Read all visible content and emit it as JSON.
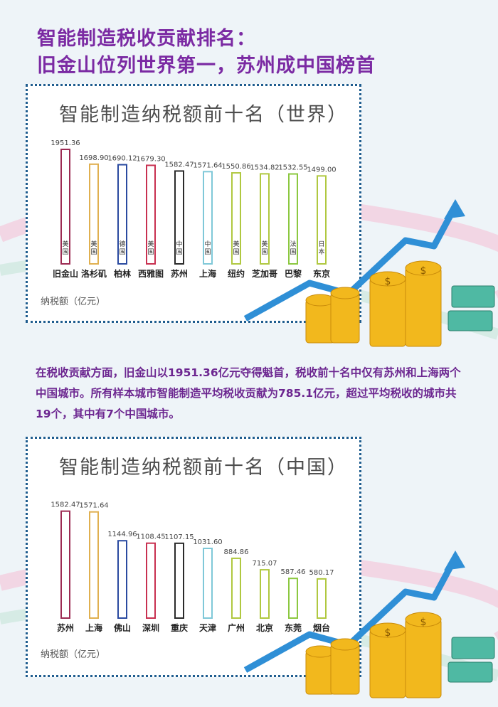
{
  "headline": {
    "line1": "智能制造税收贡献排名：",
    "line2": "旧金山位列世界第一，苏州成中国榜首"
  },
  "paragraph": "在税收贡献方面，旧金山以1951.36亿元夺得魁首，税收前十名中仅有苏州和上海两个中国城市。所有样本城市智能制造平均税收贡献为785.1亿元，超过平均税收的城市共19个，其中有7个中国城市。",
  "colors": {
    "headline": "#7b2aa3",
    "panel_border": "#1f5d8f",
    "arrow": "#2f8fd6",
    "coin": "#f2b81d"
  },
  "chart_data": [
    {
      "type": "bar",
      "title": "智能制造纳税额前十名（世界）",
      "ylabel": "纳税额（亿元）",
      "categories": [
        "旧金山",
        "洛杉矶",
        "柏林",
        "西雅图",
        "苏州",
        "上海",
        "纽约",
        "芝加哥",
        "巴黎",
        "东京"
      ],
      "countries": [
        "美国",
        "美国",
        "德国",
        "美国",
        "中国",
        "中国",
        "美国",
        "美国",
        "法国",
        "日本"
      ],
      "values": [
        1951.36,
        1698.9,
        1690.12,
        1679.3,
        1582.47,
        1571.64,
        1550.86,
        1534.82,
        1532.55,
        1499.0
      ],
      "value_labels": [
        "1951.36",
        "1698.90",
        "1690.12",
        "1679.30",
        "1582.47",
        "1571.64",
        "1550.86",
        "1534.82",
        "1532.55",
        "1499.00"
      ],
      "bar_colors": [
        "#9c2a52",
        "#e0b050",
        "#2a4aa0",
        "#c83050",
        "#2a2a2a",
        "#7fc8d8",
        "#b0c840",
        "#b0c840",
        "#8cc840",
        "#b0c840"
      ],
      "ylim": [
        0,
        2000
      ],
      "grid": false
    },
    {
      "type": "bar",
      "title": "智能制造纳税额前十名（中国）",
      "ylabel": "纳税额（亿元）",
      "categories": [
        "苏州",
        "上海",
        "佛山",
        "深圳",
        "重庆",
        "天津",
        "广州",
        "北京",
        "东莞",
        "烟台"
      ],
      "values": [
        1582.47,
        1571.64,
        1144.96,
        1108.45,
        1107.15,
        1031.6,
        884.86,
        715.07,
        587.46,
        580.17
      ],
      "value_labels": [
        "1582.47",
        "1571.64",
        "1144.96",
        "1108.45",
        "1107.15",
        "1031.60",
        "884.86",
        "715.07",
        "587.46",
        "580.17"
      ],
      "bar_colors": [
        "#9c2a52",
        "#e0b050",
        "#2a4aa0",
        "#c83050",
        "#2a2a2a",
        "#7fc8d8",
        "#b0c840",
        "#b0c840",
        "#8cc840",
        "#b0c840"
      ],
      "ylim": [
        0,
        1600
      ],
      "grid": false
    }
  ]
}
